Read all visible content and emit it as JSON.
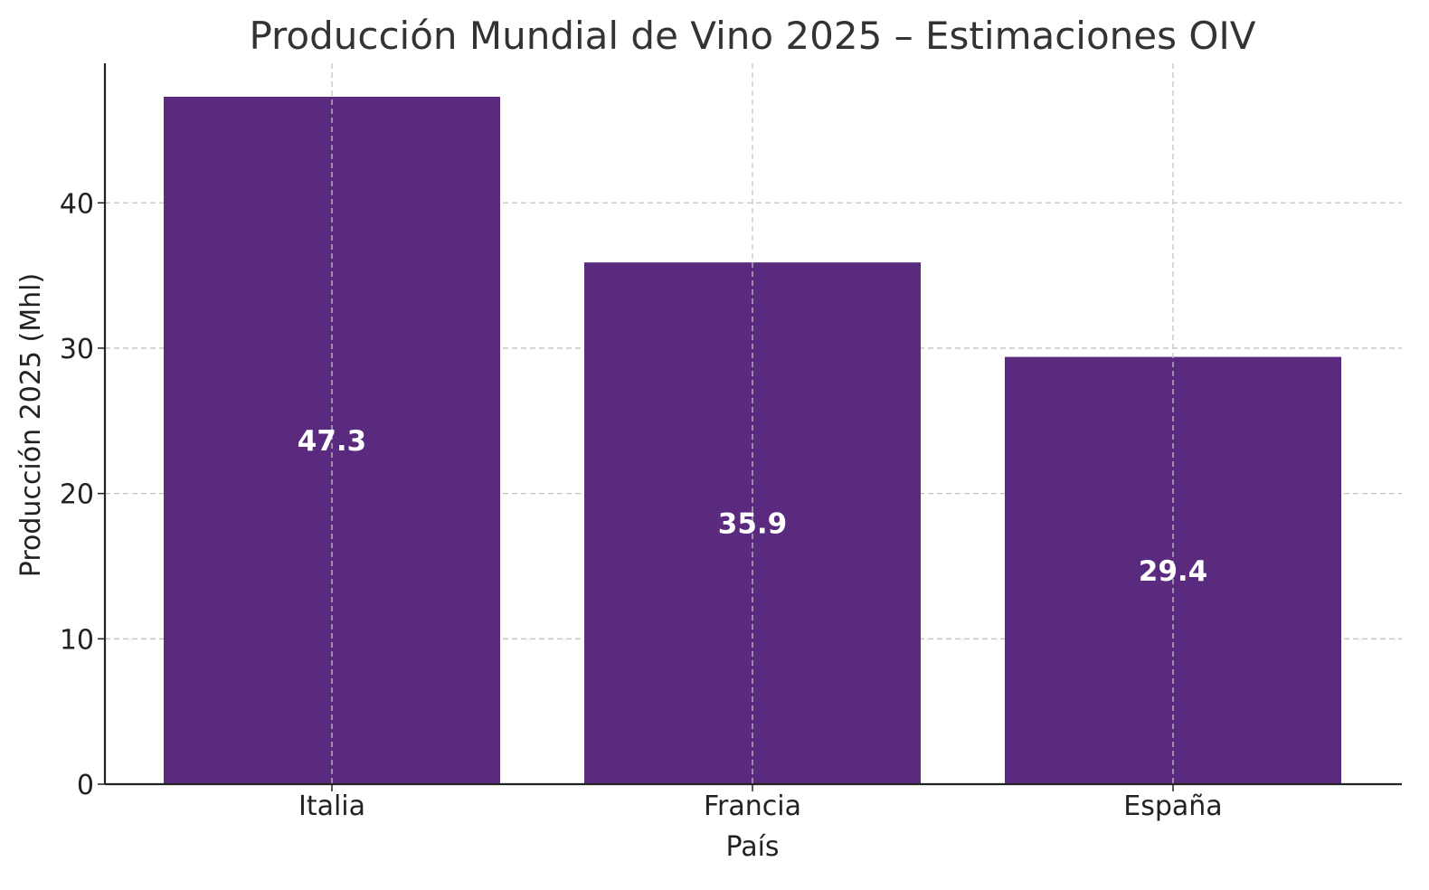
{
  "chart_data": {
    "type": "bar",
    "title": "Producción Mundial de Vino 2025 – Estimaciones OIV",
    "xlabel": "País",
    "ylabel": "Producción 2025 (Mhl)",
    "categories": [
      "Italia",
      "Francia",
      "España"
    ],
    "values": [
      47.3,
      35.9,
      29.4
    ],
    "value_labels": [
      "47.3",
      "35.9",
      "29.4"
    ],
    "ylim": [
      0,
      49.6
    ],
    "yticks": [
      0,
      10,
      20,
      30,
      40
    ],
    "ytick_labels": [
      "0",
      "10",
      "20",
      "30",
      "40"
    ],
    "grid": true,
    "bar_color": "#5a2a7e",
    "value_label_color": "#ffffff",
    "axis_color": "#222222",
    "grid_color": "#c4c4c4",
    "title_color": "#333333"
  }
}
